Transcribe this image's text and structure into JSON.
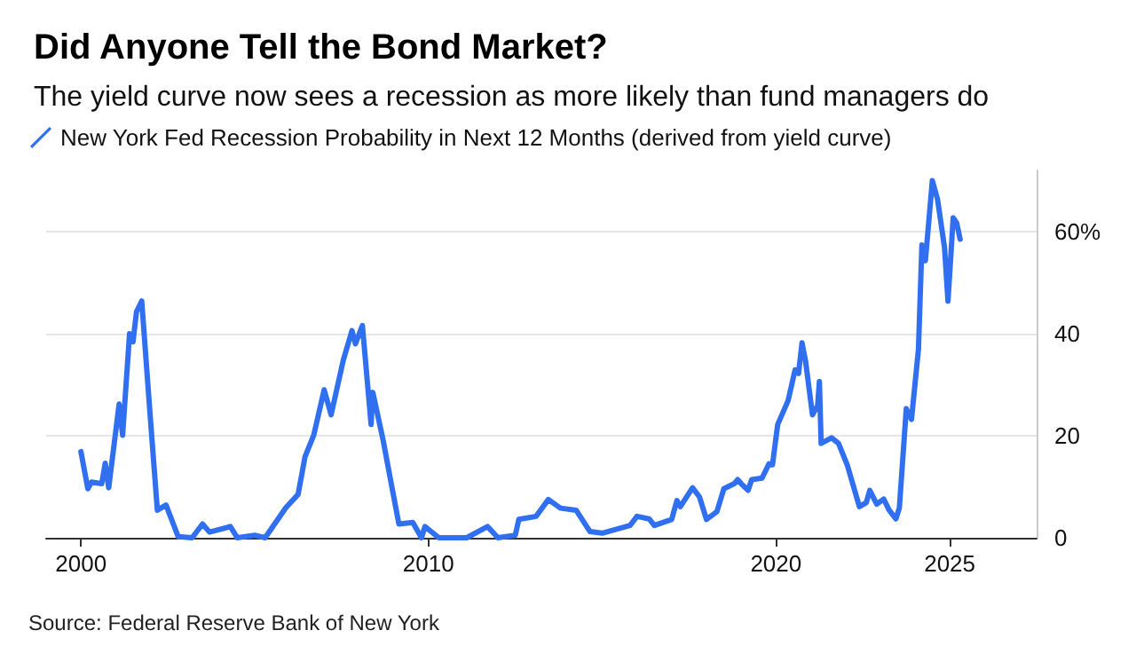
{
  "chart_data": {
    "type": "line",
    "title": "Did Anyone Tell the Bond Market?",
    "subtitle": "The yield curve now sees a recession as more likely than fund managers do",
    "annotations": [
      "Source: Federal Reserve Bank of New York"
    ],
    "x": [
      2000.0,
      2000.2,
      2000.3,
      2000.6,
      2000.7,
      2000.8,
      2001.1,
      2001.2,
      2001.4,
      2001.5,
      2001.6,
      2001.75,
      2002.0,
      2002.2,
      2002.45,
      2002.8,
      2003.2,
      2003.5,
      2003.7,
      2004.3,
      2004.5,
      2005.0,
      2005.3,
      2005.9,
      2006.25,
      2006.45,
      2006.7,
      2007.0,
      2007.2,
      2007.55,
      2007.8,
      2007.9,
      2008.1,
      2008.35,
      2008.4,
      2008.7,
      2008.9,
      2009.15,
      2009.55,
      2009.8,
      2009.9,
      2010.3,
      2011.1,
      2011.7,
      2012.0,
      2012.5,
      2012.6,
      2013.1,
      2013.45,
      2013.8,
      2014.25,
      2014.65,
      2015.0,
      2015.8,
      2016.0,
      2016.35,
      2016.5,
      2017.0,
      2017.15,
      2017.25,
      2017.6,
      2017.8,
      2018.0,
      2018.3,
      2018.5,
      2018.8,
      2018.9,
      2019.0,
      2019.2,
      2019.3,
      2019.6,
      2019.8,
      2019.9,
      2020.05,
      2020.35,
      2020.55,
      2020.65,
      2020.75,
      2020.85,
      2021.05,
      2021.2,
      2021.25,
      2021.3,
      2021.6,
      2021.8,
      2022.05,
      2022.4,
      2022.6,
      2022.7,
      2022.9,
      2023.1,
      2023.25,
      2023.45,
      2023.55,
      2023.75,
      2023.9,
      2024.1,
      2024.2,
      2024.3,
      2024.5,
      2024.65,
      2024.85,
      2024.95,
      2025.1,
      2025.2,
      2025.3
    ],
    "series": [
      {
        "name": "New York Fed Recession Probability in Next 12 Months (derived from yield curve)",
        "color": "#2f6ff0",
        "values": [
          16.9,
          9.6,
          10.9,
          10.6,
          14.6,
          9.8,
          26.2,
          20.1,
          40,
          38.4,
          44.3,
          46.4,
          23.3,
          5.4,
          6.4,
          0.2,
          0,
          2.7,
          1.1,
          2.2,
          0,
          0.5,
          0,
          5.9,
          8.5,
          15.9,
          20.1,
          29,
          24.1,
          34.8,
          40.6,
          38,
          41.6,
          22.2,
          28.5,
          19,
          11.7,
          2.7,
          3,
          0,
          2.2,
          0,
          0,
          2.2,
          0,
          0.5,
          3.6,
          4.2,
          7.5,
          5.8,
          5.4,
          1.2,
          0.9,
          2.4,
          4.2,
          3.7,
          2.4,
          3.6,
          7.3,
          6.1,
          9.8,
          8,
          3.6,
          5.1,
          9.6,
          10.6,
          11.4,
          10.6,
          9.3,
          11.4,
          11.7,
          14.5,
          14.3,
          22.2,
          26.9,
          32.9,
          32.2,
          38.2,
          34.7,
          24.1,
          25.9,
          30.6,
          18.5,
          19.6,
          18.5,
          14.3,
          6.1,
          6.9,
          9.3,
          6.6,
          7.6,
          5.5,
          3.7,
          5.8,
          25.3,
          23.2,
          36.9,
          57.4,
          54.3,
          70,
          66.3,
          56.9,
          46.4,
          62.7,
          61.7,
          58.5
        ]
      }
    ],
    "xlim": [
      1999,
      2027.5
    ],
    "xticks": [
      2000,
      2010,
      2020,
      2025
    ],
    "ylim": [
      0,
      72
    ],
    "yticks": [
      0,
      20,
      40,
      {
        "value": 60,
        "label": "60%"
      }
    ],
    "grid": "y",
    "legend": "top left",
    "line_style": "solid",
    "marker": "none"
  }
}
